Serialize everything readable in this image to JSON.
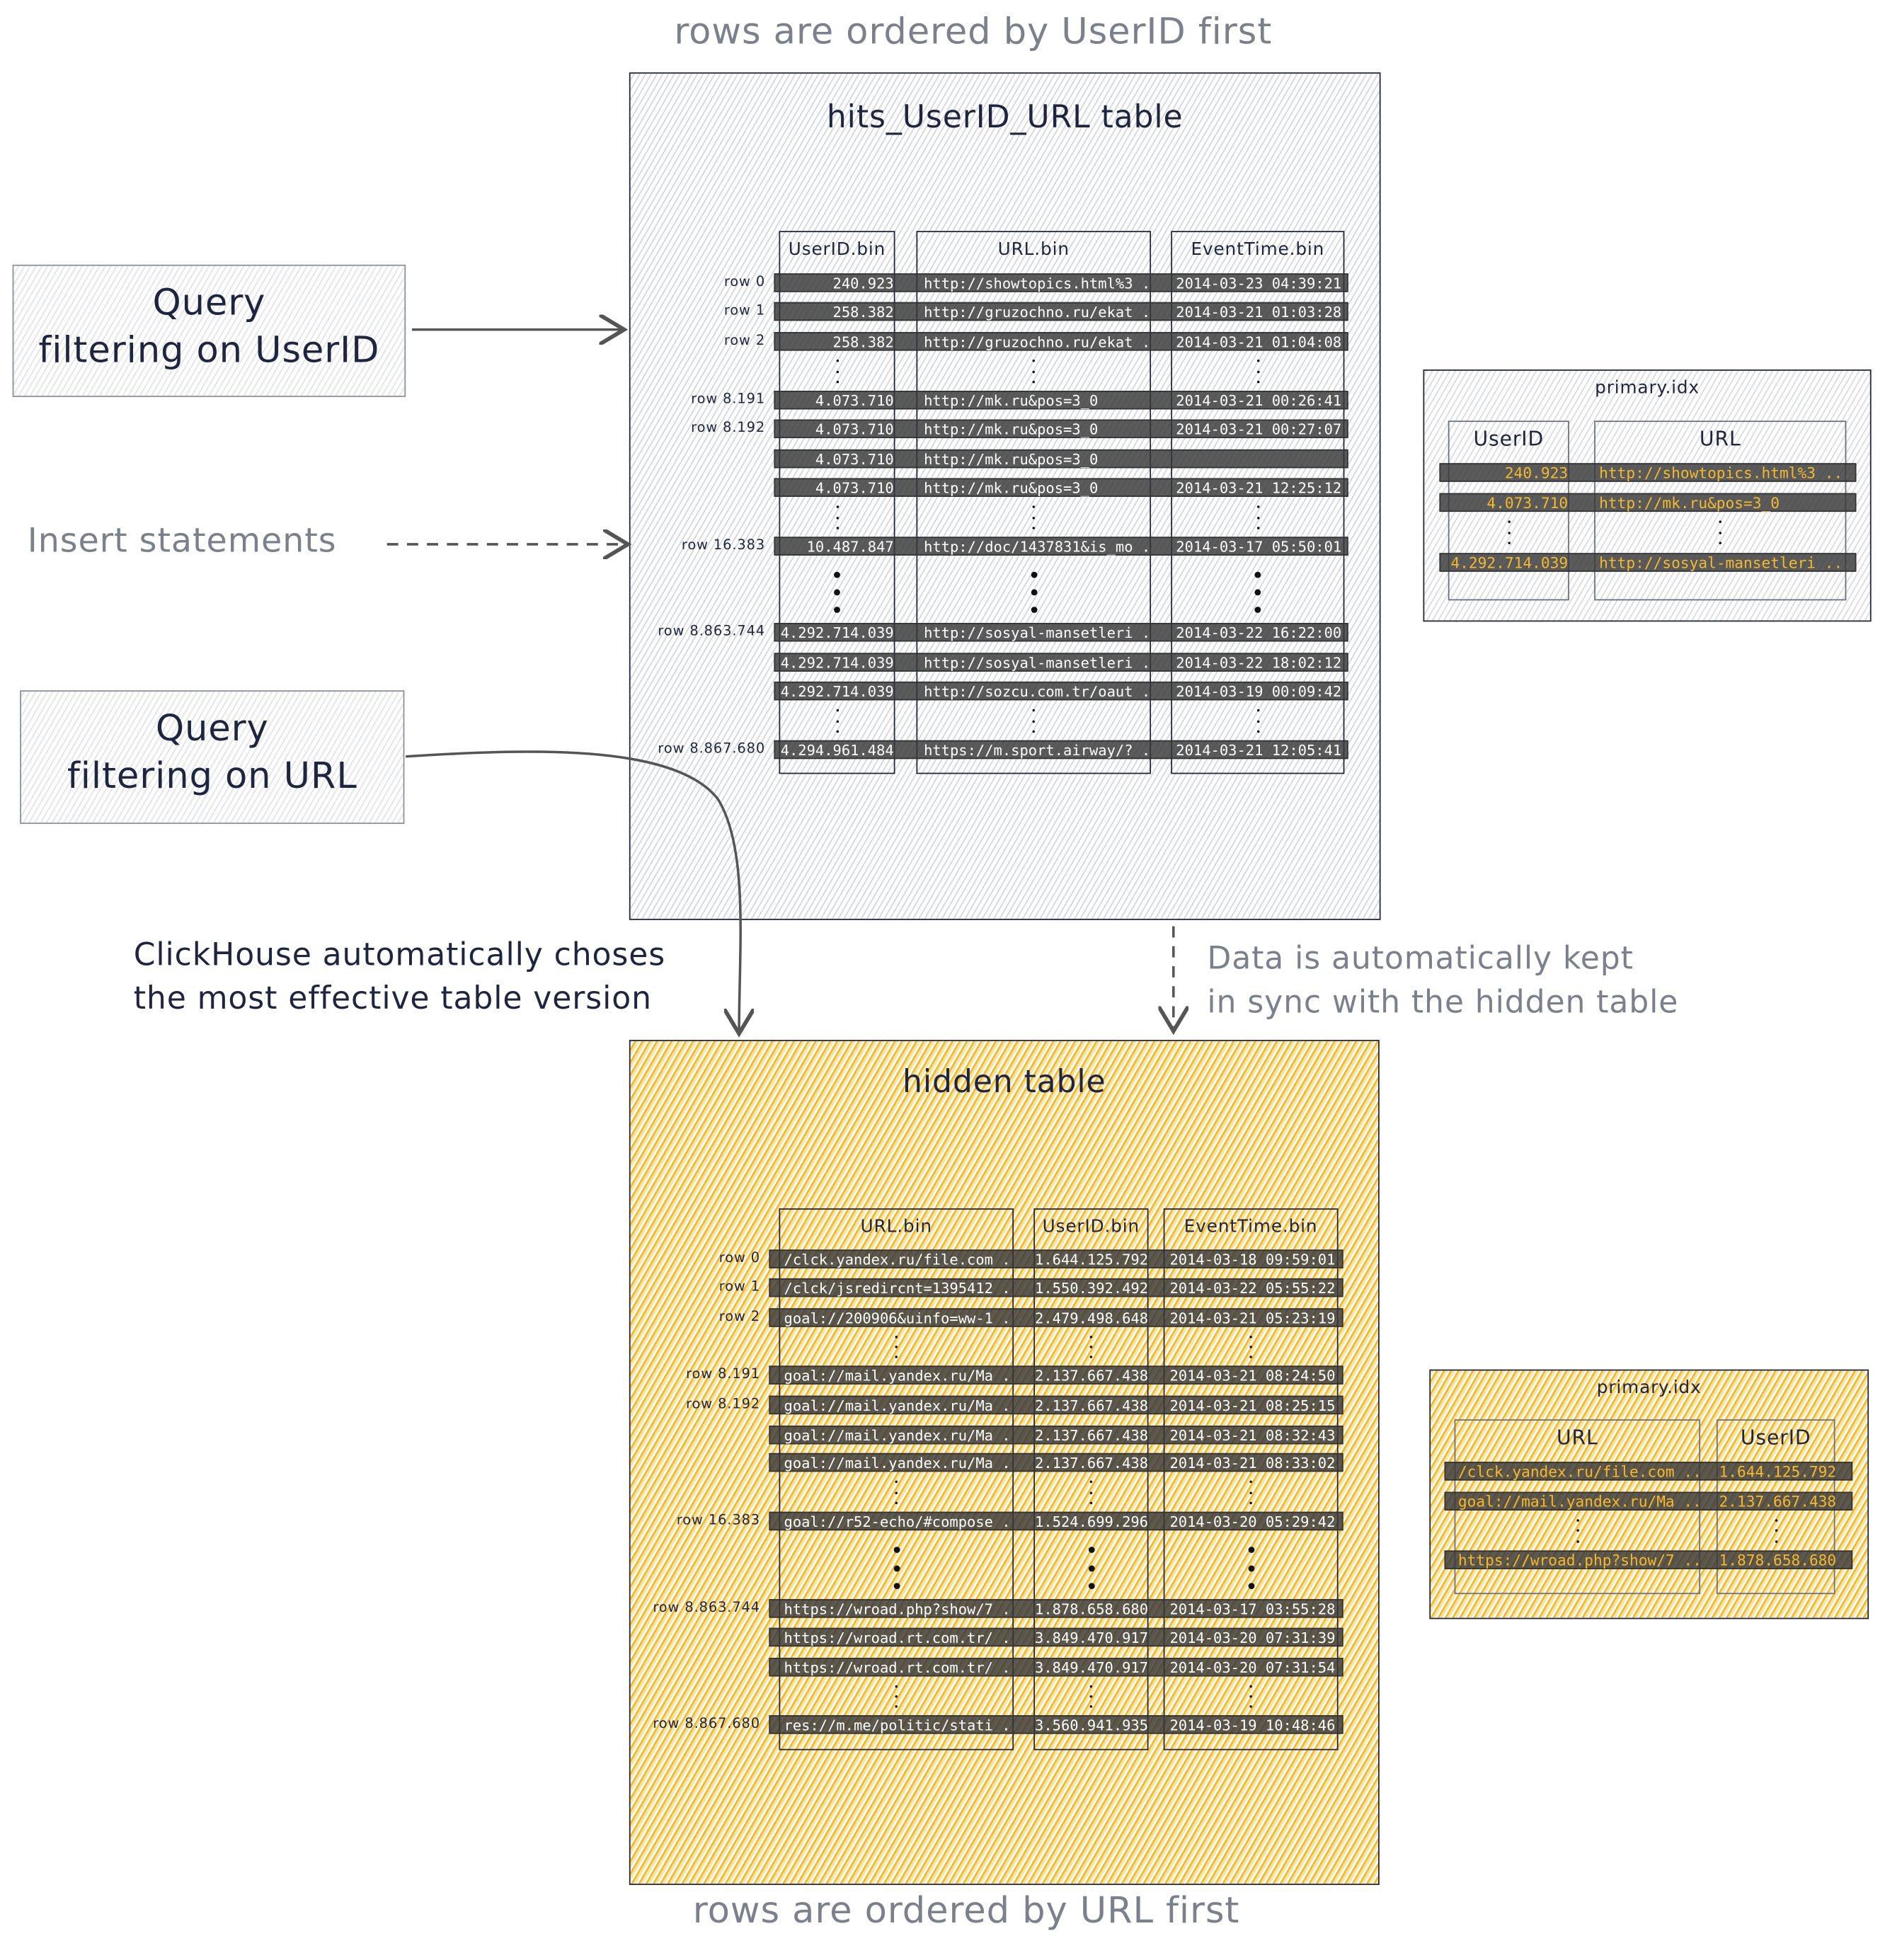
{
  "captions": {
    "top": "rows are ordered by UserID first",
    "bottom": "rows are ordered by URL first"
  },
  "query_userid": {
    "line1": "Query",
    "line2": "filtering on UserID"
  },
  "insert_statements": "Insert statements",
  "query_url": {
    "line1": "Query",
    "line2": "filtering on URL"
  },
  "note_clickhouse": {
    "line1": "ClickHouse automatically choses",
    "line2": "the most effective table version"
  },
  "note_sync": {
    "line1": "Data is automatically kept",
    "line2": "in sync with the hidden table"
  },
  "colors": {
    "hatch_gray": "#d3d6dc",
    "hatch_yellow": "#f2b92e",
    "ink": "#1e2540",
    "caption": "#7b808d",
    "index_text": "#f5b82e"
  },
  "main_table": {
    "title": "hits_UserID_URL table",
    "columns": [
      "UserID.bin",
      "URL.bin",
      "EventTime.bin"
    ],
    "rows": [
      {
        "label": "row 0",
        "cells": [
          "240.923",
          "http://showtopics.html%3 ...",
          "2014-03-23 04:39:21"
        ]
      },
      {
        "label": "row 1",
        "cells": [
          "258.382",
          "http://gruzochno.ru/ekat ...",
          "2014-03-21 01:03:28"
        ]
      },
      {
        "label": "row 2",
        "cells": [
          "258.382",
          "http://gruzochno.ru/ekat ...",
          "2014-03-21 01:04:08"
        ]
      },
      {
        "label": "row 8.191",
        "cells": [
          "4.073.710",
          "http://mk.ru&pos=3_0",
          "2014-03-21 00:26:41"
        ]
      },
      {
        "label": "row 8.192",
        "cells": [
          "4.073.710",
          "http://mk.ru&pos=3_0",
          "2014-03-21 00:27:07"
        ]
      },
      {
        "label": "",
        "cells": [
          "4.073.710",
          "http://mk.ru&pos=3_0",
          ""
        ]
      },
      {
        "label": "",
        "cells": [
          "4.073.710",
          "http://mk.ru&pos=3_0",
          "2014-03-21 12:25:12"
        ]
      },
      {
        "label": "row 16.383",
        "cells": [
          "10.487.847",
          "http://doc/1437831&is_mo ...",
          "2014-03-17 05:50:01"
        ]
      },
      {
        "label": "row 8.863.744",
        "cells": [
          "4.292.714.039",
          "http://sosyal-mansetleri ...",
          "2014-03-22 16:22:00"
        ]
      },
      {
        "label": "",
        "cells": [
          "4.292.714.039",
          "http://sosyal-mansetleri ...",
          "2014-03-22 18:02:12"
        ]
      },
      {
        "label": "",
        "cells": [
          "4.292.714.039",
          "http://sozcu.com.tr/oaut ...",
          "2014-03-19 00:09:42"
        ]
      },
      {
        "label": "row 8.867.680",
        "cells": [
          "4.294.961.484",
          "https://m.sport.airway/? ...",
          "2014-03-21 12:05:41"
        ]
      }
    ]
  },
  "main_index": {
    "title": "primary.idx",
    "columns": [
      "UserID",
      "URL"
    ],
    "rows": [
      {
        "cells": [
          "240.923",
          "http://showtopics.html%3 ..."
        ]
      },
      {
        "cells": [
          "4.073.710",
          "http://mk.ru&pos=3_0"
        ]
      },
      {
        "cells": [
          "4.292.714.039",
          "http://sosyal-mansetleri ..."
        ]
      }
    ]
  },
  "hidden_table": {
    "title": "hidden table",
    "columns": [
      "URL.bin",
      "UserID.bin",
      "EventTime.bin"
    ],
    "rows": [
      {
        "label": "row 0",
        "cells": [
          "/clck.yandex.ru/file.com ...",
          "1.644.125.792",
          "2014-03-18 09:59:01"
        ]
      },
      {
        "label": "row 1",
        "cells": [
          "/clck/jsredircnt=1395412 ...",
          "1.550.392.492",
          "2014-03-22 05:55:22"
        ]
      },
      {
        "label": "row 2",
        "cells": [
          "goal://200906&uinfo=ww-1 ...",
          "2.479.498.648",
          "2014-03-21 05:23:19"
        ]
      },
      {
        "label": "row 8.191",
        "cells": [
          "goal://mail.yandex.ru/Ma ...",
          "2.137.667.438",
          "2014-03-21 08:24:50"
        ]
      },
      {
        "label": "row 8.192",
        "cells": [
          "goal://mail.yandex.ru/Ma ...",
          "2.137.667.438",
          "2014-03-21 08:25:15"
        ]
      },
      {
        "label": "",
        "cells": [
          "goal://mail.yandex.ru/Ma ...",
          "2.137.667.438",
          "2014-03-21 08:32:43"
        ]
      },
      {
        "label": "",
        "cells": [
          "goal://mail.yandex.ru/Ma ...",
          "2.137.667.438",
          "2014-03-21 08:33:02"
        ]
      },
      {
        "label": "row 16.383",
        "cells": [
          "goal://r52-echo/#compose ...",
          "1.524.699.296",
          "2014-03-20 05:29:42"
        ]
      },
      {
        "label": "row 8.863.744",
        "cells": [
          "https://wroad.php?show/7 ...",
          "1.878.658.680",
          "2014-03-17 03:55:28"
        ]
      },
      {
        "label": "",
        "cells": [
          "https://wroad.rt.com.tr/ ...",
          "3.849.470.917",
          "2014-03-20 07:31:39"
        ]
      },
      {
        "label": "",
        "cells": [
          "https://wroad.rt.com.tr/ ...",
          "3.849.470.917",
          "2014-03-20 07:31:54"
        ]
      },
      {
        "label": "row 8.867.680",
        "cells": [
          "res://m.me/politic/stati ...",
          "3.560.941.935",
          "2014-03-19 10:48:46"
        ]
      }
    ]
  },
  "hidden_index": {
    "title": "primary.idx",
    "columns": [
      "URL",
      "UserID"
    ],
    "rows": [
      {
        "cells": [
          "/clck.yandex.ru/file.com ...",
          "1.644.125.792"
        ]
      },
      {
        "cells": [
          "goal://mail.yandex.ru/Ma ...",
          "2.137.667.438"
        ]
      },
      {
        "cells": [
          "https://wroad.php?show/7 ...",
          "1.878.658.680"
        ]
      }
    ]
  }
}
